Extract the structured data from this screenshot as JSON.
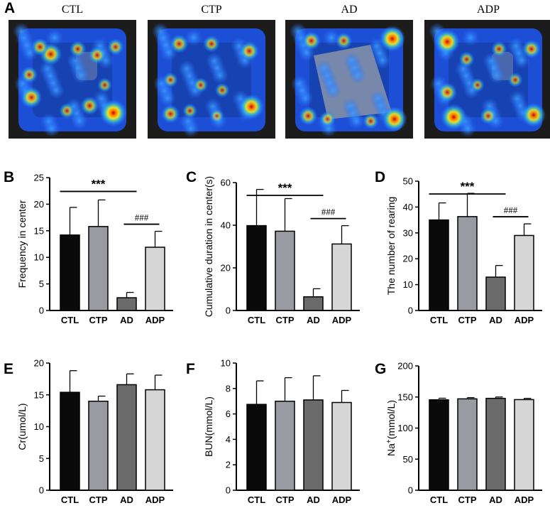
{
  "panel_a": {
    "letter": "A",
    "heatmaps": [
      {
        "label": "CTL",
        "hotspots": [
          [
            0.88,
            0.82,
            1.0
          ],
          [
            0.12,
            0.67,
            0.7
          ],
          [
            0.66,
            0.75,
            0.55
          ],
          [
            0.3,
            0.25,
            0.75
          ],
          [
            0.73,
            0.26,
            0.5
          ],
          [
            0.9,
            0.18,
            0.45
          ],
          [
            0.1,
            0.45,
            0.45
          ],
          [
            0.55,
            0.2,
            0.45
          ],
          [
            0.45,
            0.8,
            0.4
          ],
          [
            0.2,
            0.18,
            0.5
          ],
          [
            0.8,
            0.55,
            0.35
          ]
        ]
      },
      {
        "label": "CTP",
        "hotspots": [
          [
            0.87,
            0.76,
            0.9
          ],
          [
            0.85,
            0.22,
            0.6
          ],
          [
            0.12,
            0.83,
            0.55
          ],
          [
            0.2,
            0.15,
            0.55
          ],
          [
            0.5,
            0.15,
            0.45
          ],
          [
            0.12,
            0.5,
            0.35
          ],
          [
            0.4,
            0.55,
            0.35
          ],
          [
            0.6,
            0.6,
            0.35
          ],
          [
            0.3,
            0.8,
            0.35
          ],
          [
            0.55,
            0.85,
            0.3
          ]
        ]
      },
      {
        "label": "AD",
        "hotspots": [
          [
            0.9,
            0.1,
            0.95
          ],
          [
            0.92,
            0.88,
            0.9
          ],
          [
            0.12,
            0.85,
            0.55
          ],
          [
            0.15,
            0.12,
            0.55
          ],
          [
            0.45,
            0.12,
            0.45
          ],
          [
            0.3,
            0.88,
            0.4
          ],
          [
            0.7,
            0.9,
            0.4
          ]
        ]
      },
      {
        "label": "ADP",
        "hotspots": [
          [
            0.12,
            0.13,
            0.9
          ],
          [
            0.18,
            0.86,
            0.95
          ],
          [
            0.92,
            0.84,
            0.85
          ],
          [
            0.9,
            0.2,
            0.55
          ],
          [
            0.12,
            0.62,
            0.6
          ],
          [
            0.5,
            0.85,
            0.45
          ],
          [
            0.6,
            0.2,
            0.4
          ],
          [
            0.3,
            0.3,
            0.4
          ],
          [
            0.75,
            0.5,
            0.35
          ],
          [
            0.4,
            0.55,
            0.3
          ]
        ]
      }
    ]
  },
  "chart_data": [
    {
      "letter": "B",
      "type": "bar",
      "categories": [
        "CTL",
        "CTP",
        "AD",
        "ADP"
      ],
      "values": [
        14.2,
        15.8,
        2.4,
        11.9
      ],
      "errors": [
        5.2,
        5.0,
        1.0,
        3.0
      ],
      "ylabel": "Frequency in center",
      "ylim": [
        0,
        25
      ],
      "yticks": [
        0,
        5,
        10,
        15,
        20,
        25
      ],
      "sig": [
        "***",
        "###"
      ]
    },
    {
      "letter": "C",
      "type": "bar",
      "categories": [
        "CTL",
        "CTP",
        "AD",
        "ADP"
      ],
      "values": [
        39.8,
        37.2,
        6.4,
        31.2
      ],
      "errors": [
        17.0,
        15.3,
        3.8,
        8.6
      ],
      "ylabel": "Cumulative duration in center(s)",
      "ylim": [
        0,
        60
      ],
      "yticks": [
        0,
        20,
        40,
        60
      ],
      "sig": [
        "***",
        "###"
      ]
    },
    {
      "letter": "D",
      "type": "bar",
      "categories": [
        "CTL",
        "CTP",
        "AD",
        "ADP"
      ],
      "values": [
        35.0,
        36.3,
        12.9,
        29.0
      ],
      "errors": [
        6.6,
        9.0,
        4.5,
        4.5
      ],
      "ylabel": "The number of rearing",
      "ylim": [
        0,
        50
      ],
      "yticks": [
        0,
        10,
        20,
        30,
        40,
        50
      ],
      "sig": [
        "***",
        "###"
      ]
    },
    {
      "letter": "E",
      "type": "bar",
      "categories": [
        "CTL",
        "CTP",
        "AD",
        "ADP"
      ],
      "values": [
        15.4,
        14.0,
        16.6,
        15.8
      ],
      "errors": [
        3.4,
        0.8,
        1.7,
        2.3
      ],
      "ylabel": "Cr(umol/L)",
      "ylim": [
        0,
        20
      ],
      "yticks": [
        0,
        5,
        10,
        15,
        20
      ]
    },
    {
      "letter": "F",
      "type": "bar",
      "categories": [
        "CTL",
        "CTP",
        "AD",
        "ADP"
      ],
      "values": [
        6.75,
        7.0,
        7.1,
        6.9
      ],
      "errors": [
        1.85,
        1.85,
        1.9,
        0.95
      ],
      "ylabel": "BUN(mmol/L)",
      "ylim": [
        0,
        10
      ],
      "yticks": [
        0,
        2,
        4,
        6,
        8,
        10
      ]
    },
    {
      "letter": "G",
      "type": "bar",
      "categories": [
        "CTL",
        "CTP",
        "AD",
        "ADP"
      ],
      "values": [
        145.5,
        147.0,
        147.8,
        145.8
      ],
      "errors": [
        2.5,
        2.0,
        2.2,
        2.0
      ],
      "ylabel_main": "Na",
      "ylabel_sup": "+",
      "ylabel_rest": "(mmol/L)",
      "ylim": [
        0,
        200
      ],
      "yticks": [
        0,
        50,
        100,
        150,
        200
      ]
    }
  ],
  "colors": {
    "bars": [
      "#0a0a0a",
      "#9a9aa2",
      "#6b6b6b",
      "#d6d6d6"
    ]
  }
}
